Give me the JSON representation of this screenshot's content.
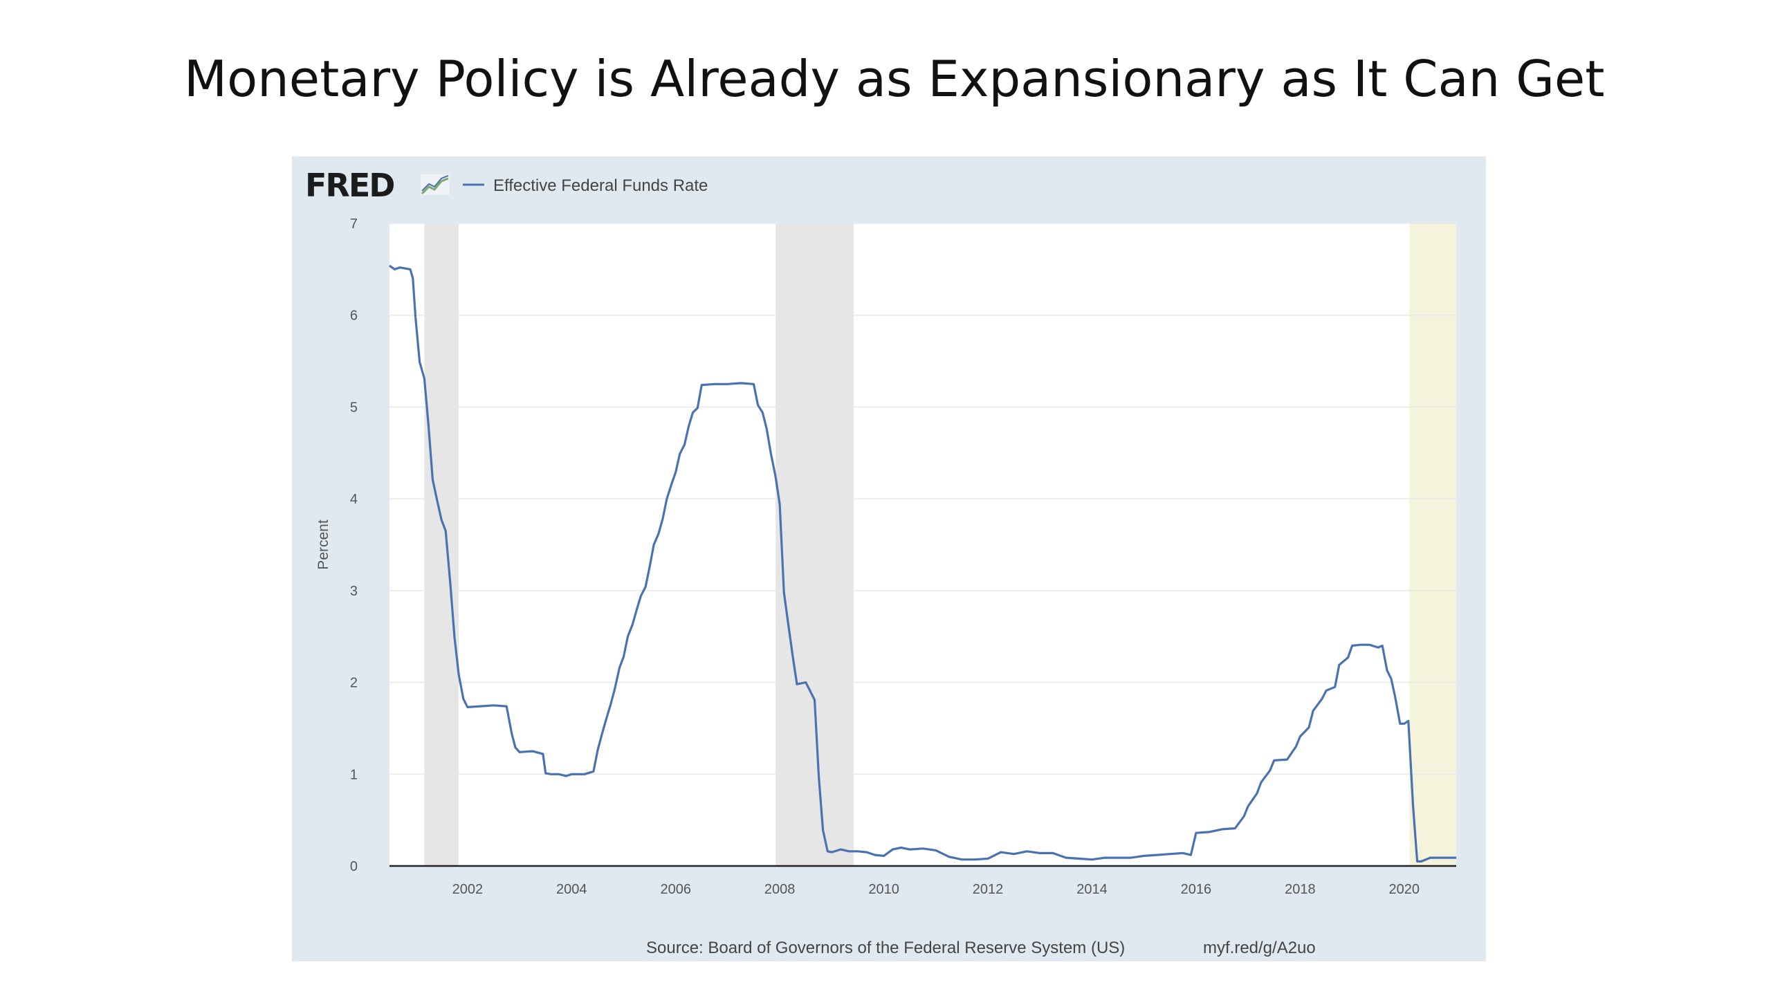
{
  "slide": {
    "title": "Monetary Policy is Already as Expansionary as It Can Get"
  },
  "fred": {
    "logo": "FRED",
    "logo_icon": "chart-line-icon",
    "source": "Source: Board of Governors of the Federal Reserve System (US)",
    "short_url": "myf.red/g/A2uo"
  },
  "colors": {
    "line": "#4a72b0",
    "panel_bg": "#e1e9f0",
    "recession": "#e6e6e6",
    "highlight": "#f4f4dc",
    "grid": "#e8e8e8"
  },
  "chart_data": {
    "type": "line",
    "title": "",
    "xlabel": "",
    "ylabel": "Percent",
    "xlim": [
      2000.5,
      2021.0
    ],
    "ylim": [
      0,
      7
    ],
    "y_ticks": [
      0,
      1,
      2,
      3,
      4,
      5,
      6,
      7
    ],
    "x_ticks": [
      2002,
      2004,
      2006,
      2008,
      2010,
      2012,
      2014,
      2016,
      2018,
      2020
    ],
    "grid": true,
    "legend_position": "top-left",
    "shaded_periods": [
      {
        "kind": "recession",
        "start": 2001.17,
        "end": 2001.83
      },
      {
        "kind": "recession",
        "start": 2007.92,
        "end": 2009.42
      },
      {
        "kind": "highlight",
        "start": 2020.1,
        "end": 2021.0
      }
    ],
    "series": [
      {
        "name": "Effective Federal Funds Rate",
        "x": [
          2000.5,
          2000.6,
          2000.7,
          2000.9,
          2000.95,
          2001.0,
          2001.08,
          2001.17,
          2001.25,
          2001.33,
          2001.42,
          2001.5,
          2001.58,
          2001.67,
          2001.75,
          2001.83,
          2001.92,
          2002.0,
          2002.25,
          2002.5,
          2002.75,
          2002.85,
          2002.92,
          2003.0,
          2003.25,
          2003.45,
          2003.5,
          2003.6,
          2003.75,
          2003.9,
          2004.0,
          2004.25,
          2004.42,
          2004.5,
          2004.58,
          2004.67,
          2004.75,
          2004.83,
          2004.92,
          2005.0,
          2005.08,
          2005.17,
          2005.25,
          2005.33,
          2005.42,
          2005.5,
          2005.58,
          2005.67,
          2005.75,
          2005.83,
          2005.92,
          2006.0,
          2006.08,
          2006.17,
          2006.25,
          2006.33,
          2006.42,
          2006.5,
          2006.75,
          2007.0,
          2007.25,
          2007.5,
          2007.58,
          2007.67,
          2007.75,
          2007.83,
          2007.92,
          2008.0,
          2008.08,
          2008.17,
          2008.25,
          2008.33,
          2008.5,
          2008.67,
          2008.75,
          2008.83,
          2008.92,
          2009.0,
          2009.17,
          2009.33,
          2009.5,
          2009.67,
          2009.83,
          2010.0,
          2010.17,
          2010.33,
          2010.5,
          2010.75,
          2011.0,
          2011.25,
          2011.5,
          2011.75,
          2012.0,
          2012.25,
          2012.5,
          2012.75,
          2013.0,
          2013.25,
          2013.5,
          2013.75,
          2014.0,
          2014.25,
          2014.5,
          2014.75,
          2015.0,
          2015.25,
          2015.5,
          2015.75,
          2015.9,
          2016.0,
          2016.25,
          2016.5,
          2016.75,
          2016.92,
          2017.0,
          2017.17,
          2017.25,
          2017.42,
          2017.5,
          2017.75,
          2017.92,
          2018.0,
          2018.17,
          2018.25,
          2018.42,
          2018.5,
          2018.67,
          2018.75,
          2018.92,
          2019.0,
          2019.17,
          2019.33,
          2019.5,
          2019.58,
          2019.67,
          2019.75,
          2019.83,
          2019.92,
          2020.0,
          2020.08,
          2020.17,
          2020.25,
          2020.33,
          2020.5,
          2020.75,
          2021.0
        ],
        "y": [
          6.54,
          6.5,
          6.52,
          6.5,
          6.4,
          5.98,
          5.49,
          5.31,
          4.8,
          4.21,
          3.97,
          3.77,
          3.65,
          3.07,
          2.49,
          2.09,
          1.82,
          1.73,
          1.74,
          1.75,
          1.74,
          1.44,
          1.29,
          1.24,
          1.25,
          1.22,
          1.01,
          1.0,
          1.0,
          0.98,
          1.0,
          1.0,
          1.03,
          1.26,
          1.43,
          1.61,
          1.76,
          1.93,
          2.16,
          2.28,
          2.5,
          2.63,
          2.79,
          2.94,
          3.04,
          3.26,
          3.5,
          3.62,
          3.78,
          4.0,
          4.16,
          4.29,
          4.49,
          4.59,
          4.79,
          4.94,
          4.99,
          5.24,
          5.25,
          5.25,
          5.26,
          5.25,
          5.02,
          4.94,
          4.76,
          4.49,
          4.24,
          3.94,
          2.98,
          2.61,
          2.28,
          1.98,
          2.0,
          1.81,
          0.97,
          0.39,
          0.16,
          0.15,
          0.18,
          0.16,
          0.16,
          0.15,
          0.12,
          0.11,
          0.18,
          0.2,
          0.18,
          0.19,
          0.17,
          0.1,
          0.07,
          0.07,
          0.08,
          0.15,
          0.13,
          0.16,
          0.14,
          0.14,
          0.09,
          0.08,
          0.07,
          0.09,
          0.09,
          0.09,
          0.11,
          0.12,
          0.13,
          0.14,
          0.12,
          0.36,
          0.37,
          0.4,
          0.41,
          0.54,
          0.65,
          0.79,
          0.91,
          1.04,
          1.15,
          1.16,
          1.3,
          1.41,
          1.51,
          1.69,
          1.82,
          1.91,
          1.95,
          2.19,
          2.27,
          2.4,
          2.41,
          2.41,
          2.38,
          2.4,
          2.13,
          2.04,
          1.83,
          1.55,
          1.55,
          1.58,
          0.65,
          0.05,
          0.05,
          0.09,
          0.09,
          0.09
        ]
      }
    ]
  }
}
